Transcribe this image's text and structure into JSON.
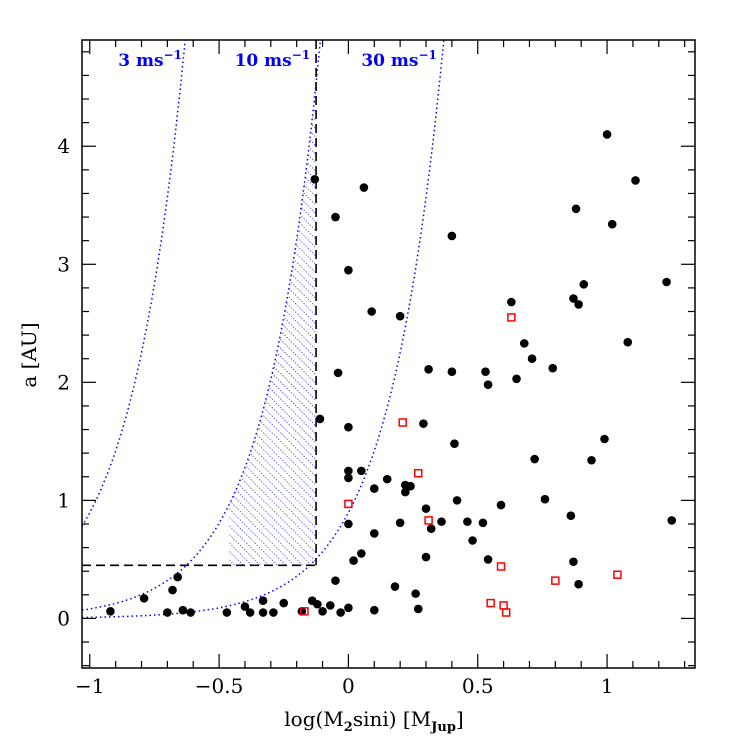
{
  "chart_data": {
    "type": "scatter",
    "title": "",
    "xlabel": {
      "pre": "log(M",
      "sub1": "2",
      "mid": "sini) [M",
      "sub2": "Jup",
      "post": "]"
    },
    "ylabel": "a [AU]",
    "xlim": [
      -1.03,
      1.34
    ],
    "ylim": [
      -0.42,
      4.9
    ],
    "x_ticks": [
      {
        "value": -1,
        "label": "−1"
      },
      {
        "value": -0.5,
        "label": "−0.5"
      },
      {
        "value": 0,
        "label": "0"
      },
      {
        "value": 0.5,
        "label": "0.5"
      },
      {
        "value": 1,
        "label": "1"
      }
    ],
    "y_ticks": [
      {
        "value": 0,
        "label": "0"
      },
      {
        "value": 1,
        "label": "1"
      },
      {
        "value": 2,
        "label": "2"
      },
      {
        "value": 3,
        "label": "3"
      },
      {
        "value": 4,
        "label": "4"
      }
    ],
    "x_minor_step": 0.1,
    "y_minor_step": 0.2,
    "grid": false,
    "annotations": [
      {
        "text": "3 ms",
        "sup": "−1",
        "x": -0.89,
        "y": 4.68
      },
      {
        "text": "10 ms",
        "sup": "−1",
        "x": -0.44,
        "y": 4.68
      },
      {
        "text": "30 ms",
        "sup": "−1",
        "x": 0.05,
        "y": 4.68
      }
    ],
    "rv_curves": [
      {
        "K": 3,
        "color": "#0000ff"
      },
      {
        "K": 10,
        "color": "#0000ff"
      },
      {
        "K": 30,
        "color": "#0000ff"
      }
    ],
    "reference_lines": {
      "x": -0.125,
      "y": 0.45,
      "color": "#000000",
      "style": "dashed"
    },
    "hatched_region": {
      "between_K": [
        10
      ],
      "x_min": -0.46,
      "x_max": -0.125,
      "y_min": 0.45,
      "color": "#0000ff"
    },
    "series": [
      {
        "marker": "filled-circle",
        "color": "#000000",
        "points": [
          [
            -0.92,
            0.06
          ],
          [
            -0.79,
            0.17
          ],
          [
            -0.7,
            0.05
          ],
          [
            -0.68,
            0.24
          ],
          [
            -0.66,
            0.35
          ],
          [
            -0.64,
            0.07
          ],
          [
            -0.61,
            0.05
          ],
          [
            -0.47,
            0.05
          ],
          [
            -0.4,
            0.1
          ],
          [
            -0.38,
            0.05
          ],
          [
            -0.33,
            0.15
          ],
          [
            -0.33,
            0.05
          ],
          [
            -0.29,
            0.05
          ],
          [
            -0.25,
            0.13
          ],
          [
            -0.18,
            0.06
          ],
          [
            -0.14,
            0.15
          ],
          [
            -0.12,
            0.12
          ],
          [
            -0.07,
            0.11
          ],
          [
            -0.03,
            0.05
          ],
          [
            0.0,
            0.09
          ],
          [
            -0.13,
            3.72
          ],
          [
            -0.11,
            1.69
          ],
          [
            -0.05,
            3.4
          ],
          [
            -0.04,
            2.08
          ],
          [
            0.06,
            3.65
          ],
          [
            0.0,
            2.95
          ],
          [
            0.09,
            2.6
          ],
          [
            0.0,
            1.62
          ],
          [
            0.0,
            1.19
          ],
          [
            0.0,
            1.25
          ],
          [
            0.05,
            1.25
          ],
          [
            0.0,
            0.8
          ],
          [
            0.02,
            0.49
          ],
          [
            0.05,
            0.55
          ],
          [
            0.1,
            0.72
          ],
          [
            0.1,
            1.1
          ],
          [
            0.15,
            1.18
          ],
          [
            0.2,
            0.81
          ],
          [
            0.2,
            2.56
          ],
          [
            0.22,
            1.13
          ],
          [
            0.22,
            1.07
          ],
          [
            0.24,
            1.12
          ],
          [
            0.26,
            0.21
          ],
          [
            0.27,
            0.08
          ],
          [
            0.29,
            1.65
          ],
          [
            0.3,
            0.93
          ],
          [
            0.31,
            2.11
          ],
          [
            0.32,
            0.76
          ],
          [
            0.36,
            0.82
          ],
          [
            0.4,
            3.24
          ],
          [
            0.4,
            2.09
          ],
          [
            0.41,
            1.48
          ],
          [
            0.42,
            1.0
          ],
          [
            0.46,
            0.82
          ],
          [
            0.48,
            0.66
          ],
          [
            0.52,
            0.81
          ],
          [
            0.53,
            2.09
          ],
          [
            0.54,
            1.98
          ],
          [
            0.54,
            0.5
          ],
          [
            0.59,
            0.96
          ],
          [
            0.63,
            2.68
          ],
          [
            0.65,
            2.03
          ],
          [
            0.68,
            2.33
          ],
          [
            0.71,
            2.2
          ],
          [
            0.72,
            1.35
          ],
          [
            0.76,
            1.01
          ],
          [
            0.79,
            2.12
          ],
          [
            0.86,
            0.87
          ],
          [
            0.87,
            0.48
          ],
          [
            0.87,
            2.71
          ],
          [
            0.88,
            3.47
          ],
          [
            0.89,
            2.66
          ],
          [
            0.89,
            0.29
          ],
          [
            0.91,
            2.83
          ],
          [
            0.94,
            1.34
          ],
          [
            0.99,
            1.52
          ],
          [
            1.0,
            4.1
          ],
          [
            1.02,
            3.34
          ],
          [
            1.08,
            2.34
          ],
          [
            1.11,
            3.71
          ],
          [
            1.23,
            2.85
          ],
          [
            1.25,
            0.83
          ],
          [
            -0.1,
            0.06
          ],
          [
            0.1,
            0.07
          ],
          [
            0.18,
            0.27
          ],
          [
            0.3,
            0.52
          ],
          [
            -0.05,
            0.32
          ]
        ]
      },
      {
        "marker": "open-square",
        "color": "#ff0000",
        "points": [
          [
            -0.17,
            0.06
          ],
          [
            0.0,
            0.97
          ],
          [
            0.21,
            1.66
          ],
          [
            0.27,
            1.23
          ],
          [
            0.31,
            0.83
          ],
          [
            0.55,
            0.13
          ],
          [
            0.59,
            0.44
          ],
          [
            0.6,
            0.11
          ],
          [
            0.61,
            0.05
          ],
          [
            0.63,
            2.55
          ],
          [
            0.8,
            0.32
          ],
          [
            1.04,
            0.37
          ]
        ]
      }
    ]
  }
}
